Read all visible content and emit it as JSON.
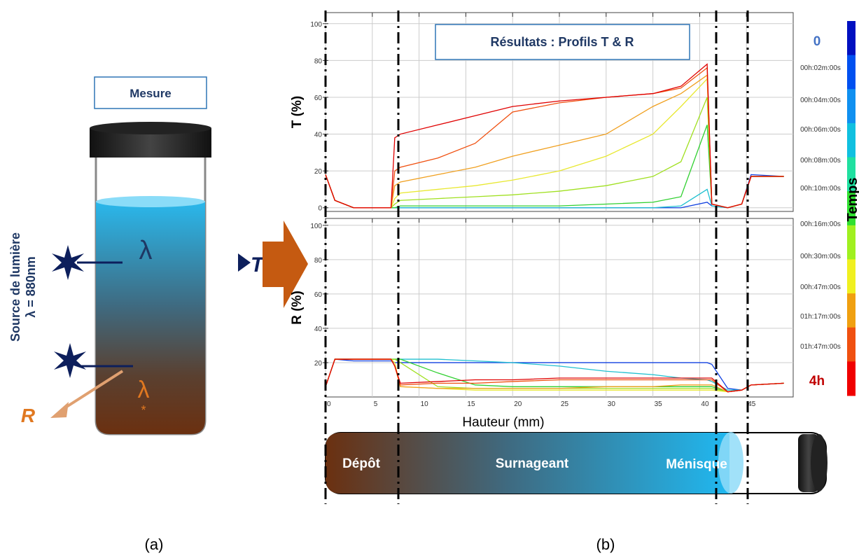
{
  "chart_data": [
    {
      "type": "line",
      "title": "Résultats : Profils T & R",
      "ylabel": "T (%)",
      "xlim": [
        0,
        50
      ],
      "ylim": [
        -2,
        106
      ],
      "xticks": [
        0,
        5,
        10,
        15,
        20,
        25,
        30,
        35,
        40,
        45
      ],
      "yticks": [
        0,
        20,
        40,
        60,
        80,
        100
      ],
      "grid": true,
      "x": [
        0,
        1,
        3,
        7,
        7.4,
        8,
        12,
        16,
        20,
        25,
        30,
        35,
        38,
        40.8,
        41.3,
        43,
        44.5,
        45.5,
        49
      ],
      "series": [
        {
          "color": "#1040e0",
          "values": [
            18,
            4,
            0,
            0,
            0,
            0,
            0,
            0,
            0,
            0,
            0,
            0,
            0,
            3,
            1,
            0,
            2,
            18,
            17
          ]
        },
        {
          "color": "#20c0d0",
          "values": [
            18,
            4,
            0,
            0,
            0,
            0,
            0,
            0,
            0,
            0,
            0,
            0,
            1,
            10,
            1,
            0,
            2,
            17,
            17
          ]
        },
        {
          "color": "#30d030",
          "values": [
            18,
            4,
            0,
            0,
            0,
            1,
            1,
            1,
            1,
            1,
            2,
            3,
            6,
            45,
            2,
            0,
            2,
            17,
            17
          ]
        },
        {
          "color": "#a0e020",
          "values": [
            18,
            4,
            0,
            0,
            2,
            4,
            5,
            6,
            7,
            9,
            12,
            17,
            25,
            60,
            2,
            0,
            2,
            17,
            17
          ]
        },
        {
          "color": "#e8e830",
          "values": [
            18,
            4,
            0,
            0,
            5,
            8,
            10,
            12,
            15,
            20,
            28,
            40,
            55,
            70,
            2,
            0,
            2,
            17,
            17
          ]
        },
        {
          "color": "#f0a020",
          "values": [
            18,
            4,
            0,
            0,
            12,
            14,
            18,
            22,
            28,
            34,
            40,
            55,
            62,
            72,
            2,
            0,
            2,
            17,
            17
          ]
        },
        {
          "color": "#f05010",
          "values": [
            18,
            4,
            0,
            0,
            20,
            22,
            27,
            35,
            52,
            57,
            60,
            62,
            65,
            76,
            2,
            0,
            2,
            17,
            17
          ]
        },
        {
          "color": "#e00000",
          "values": [
            18,
            4,
            0,
            0,
            38,
            40,
            45,
            50,
            55,
            58,
            60,
            62,
            66,
            78,
            2,
            0,
            2,
            17,
            17
          ]
        }
      ]
    },
    {
      "type": "line",
      "ylabel": "R (%)",
      "xlabel": "Hauteur (mm)",
      "xlim": [
        0,
        50
      ],
      "ylim": [
        0,
        104
      ],
      "xticks": [
        0,
        5,
        10,
        15,
        20,
        25,
        30,
        35,
        40,
        45
      ],
      "yticks": [
        20,
        40,
        60,
        80,
        100
      ],
      "grid": true,
      "x": [
        0,
        1,
        3,
        7,
        7.4,
        8,
        12,
        16,
        20,
        25,
        30,
        35,
        38,
        40.8,
        41.3,
        43,
        44.5,
        45.5,
        49
      ],
      "series": [
        {
          "color": "#1040e0",
          "values": [
            6,
            22,
            21,
            21,
            20,
            20,
            20,
            20,
            20,
            20,
            20,
            20,
            20,
            20,
            19,
            5,
            4,
            7,
            8
          ]
        },
        {
          "color": "#20c0d0",
          "values": [
            6,
            22,
            22,
            22,
            22,
            22,
            22,
            21,
            20,
            18,
            15,
            13,
            11,
            10,
            9,
            4,
            4,
            7,
            8
          ]
        },
        {
          "color": "#30d030",
          "values": [
            6,
            22,
            22,
            22,
            22,
            22,
            14,
            7,
            6,
            6,
            6,
            6,
            6,
            6,
            6,
            3,
            4,
            7,
            8
          ]
        },
        {
          "color": "#a0e020",
          "values": [
            6,
            22,
            22,
            22,
            22,
            20,
            6,
            5,
            5,
            5,
            5,
            5,
            5,
            5,
            5,
            3,
            4,
            7,
            8
          ]
        },
        {
          "color": "#e8e830",
          "values": [
            6,
            22,
            22,
            22,
            20,
            6,
            5,
            4,
            4,
            4,
            4,
            4,
            4,
            4,
            4,
            3,
            4,
            7,
            8
          ]
        },
        {
          "color": "#f0a020",
          "values": [
            6,
            22,
            22,
            22,
            18,
            6,
            5,
            5,
            5,
            5,
            6,
            6,
            7,
            7,
            7,
            3,
            4,
            7,
            8
          ]
        },
        {
          "color": "#f05010",
          "values": [
            6,
            22,
            22,
            22,
            18,
            7,
            8,
            8,
            9,
            10,
            10,
            10,
            10,
            10,
            10,
            3,
            4,
            7,
            8
          ]
        },
        {
          "color": "#e00000",
          "values": [
            6,
            22,
            22,
            22,
            18,
            8,
            9,
            10,
            10,
            11,
            11,
            11,
            11,
            11,
            11,
            3,
            4,
            7,
            8
          ]
        }
      ]
    }
  ],
  "colorbar": {
    "title": "Temps",
    "labels": [
      "0",
      "00h:02m:00s",
      "00h:04m:00s",
      "00h:06m:00s",
      "00h:08m:00s",
      "00h:10m:00s",
      "00h:16m:00s",
      "00h:30m:00s",
      "00h:47m:00s",
      "01h:17m:00s",
      "01h:47m:00s",
      "4h"
    ],
    "colors": [
      "#0010c0",
      "#0050f0",
      "#1090f0",
      "#10c0e0",
      "#20e0a0",
      "#30e030",
      "#a0f020",
      "#f0f020",
      "#f0a010",
      "#f05010",
      "#f00000"
    ]
  },
  "diagram": {
    "mesure": "Mesure",
    "source": "Source de lumière",
    "wavelength": "λ = 880nm",
    "lambda_t": "λ",
    "lambda_r": "λ",
    "star": "*",
    "t": "T",
    "r": "R",
    "panel_a": "(a)",
    "panel_b": "(b)",
    "tube": {
      "depot": "Dépôt",
      "surnageant": "Surnageant",
      "menisque": "Ménisque"
    }
  }
}
